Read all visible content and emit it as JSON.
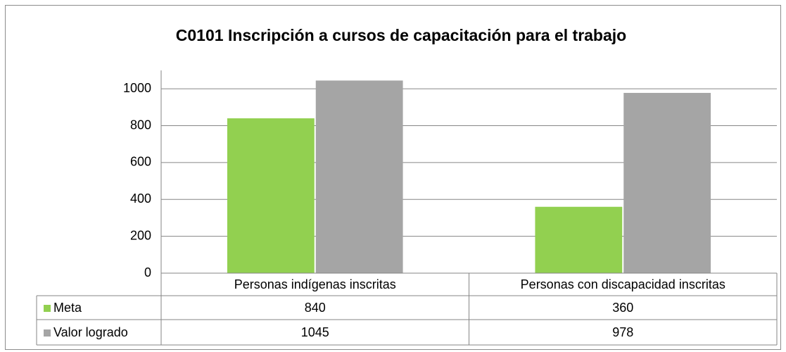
{
  "chart_data": {
    "type": "bar",
    "title": "C0101 Inscripción a cursos de capacitación para el trabajo",
    "categories": [
      "Personas indígenas inscritas",
      "Personas con discapacidad inscritas"
    ],
    "series": [
      {
        "name": "Meta",
        "color": "#92d050",
        "values": [
          840,
          360
        ]
      },
      {
        "name": "Valor logrado",
        "color": "#a5a5a5",
        "values": [
          1045,
          978
        ]
      }
    ],
    "ylim": [
      0,
      1100
    ],
    "yticks": [
      0,
      200,
      400,
      600,
      800,
      1000
    ],
    "grid": true
  }
}
